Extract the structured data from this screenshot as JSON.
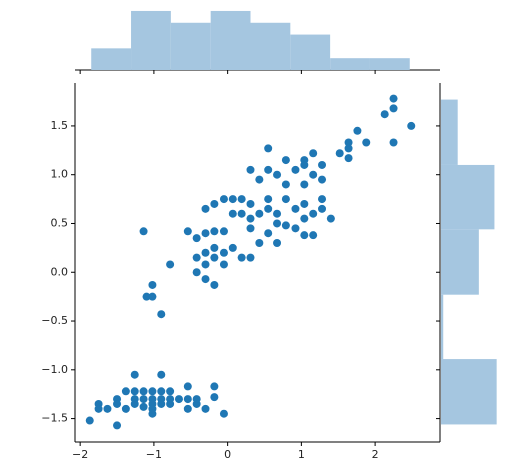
{
  "chart_data": {
    "type": "jointplot",
    "color": "#1f77b4",
    "hist_color": "#a5c6e0",
    "x": [
      -1.87,
      -1.75,
      -1.75,
      -1.63,
      -1.5,
      -1.5,
      -1.5,
      -1.38,
      -1.38,
      -1.26,
      -1.26,
      -1.26,
      -1.26,
      -1.14,
      -1.14,
      -1.14,
      -1.02,
      -1.02,
      -1.02,
      -1.02,
      -1.02,
      -0.9,
      -0.9,
      -0.9,
      -0.9,
      -0.78,
      -0.78,
      -0.78,
      -0.66,
      -0.54,
      -0.54,
      -0.54,
      -0.42,
      -0.42,
      -0.3,
      -0.18,
      -0.18,
      -0.05,
      -1.14,
      -1.02,
      -1.02,
      -1.1,
      -0.9,
      -0.78,
      -0.54,
      -0.42,
      -0.42,
      -0.42,
      -0.3,
      -0.3,
      -0.3,
      -0.3,
      -0.3,
      -0.18,
      -0.18,
      -0.18,
      -0.18,
      -0.18,
      -0.05,
      -0.05,
      -0.05,
      -0.05,
      0.07,
      0.07,
      0.07,
      0.19,
      0.19,
      0.19,
      0.31,
      0.31,
      0.31,
      0.31,
      0.31,
      0.43,
      0.43,
      0.43,
      0.55,
      0.55,
      0.55,
      0.55,
      0.55,
      0.67,
      0.67,
      0.67,
      0.67,
      0.79,
      0.79,
      0.79,
      0.79,
      0.92,
      0.92,
      0.92,
      1.04,
      1.04,
      1.04,
      1.04,
      1.04,
      1.04,
      1.16,
      1.16,
      1.16,
      1.16,
      1.28,
      1.28,
      1.28,
      1.28,
      1.4,
      1.52,
      1.64,
      1.64,
      1.64,
      1.76,
      1.88,
      2.13,
      2.25,
      2.25,
      2.25,
      2.49
    ],
    "y": [
      -1.52,
      -1.35,
      -1.4,
      -1.4,
      -1.57,
      -1.3,
      -1.35,
      -1.22,
      -1.4,
      -1.05,
      -1.22,
      -1.3,
      -1.35,
      -1.22,
      -1.3,
      -1.38,
      -1.22,
      -1.3,
      -1.35,
      -1.4,
      -1.45,
      -1.05,
      -1.22,
      -1.3,
      -1.35,
      -1.22,
      -1.3,
      -1.35,
      -1.3,
      -1.17,
      -1.3,
      -1.4,
      -1.35,
      -1.3,
      -1.4,
      -1.17,
      -1.28,
      -1.45,
      0.42,
      -0.13,
      -0.25,
      -0.25,
      -0.43,
      0.08,
      0.42,
      0.35,
      0.15,
      0.0,
      0.65,
      0.4,
      0.2,
      0.08,
      -0.07,
      0.7,
      0.42,
      0.25,
      0.15,
      -0.13,
      0.75,
      0.42,
      0.2,
      0.08,
      0.75,
      0.6,
      0.25,
      0.75,
      0.6,
      0.15,
      1.05,
      0.7,
      0.55,
      0.45,
      0.15,
      0.95,
      0.6,
      0.3,
      1.27,
      1.05,
      0.75,
      0.65,
      0.4,
      1.0,
      0.6,
      0.5,
      0.3,
      1.15,
      0.9,
      0.75,
      0.48,
      1.05,
      0.65,
      0.45,
      1.15,
      1.1,
      0.9,
      0.7,
      0.55,
      0.38,
      1.22,
      1.0,
      0.6,
      0.38,
      1.1,
      0.95,
      0.75,
      0.65,
      0.55,
      1.22,
      1.33,
      1.27,
      1.17,
      1.45,
      1.33,
      1.62,
      1.78,
      1.68,
      1.33,
      1.5
    ],
    "xlim": [
      -2.07,
      2.88
    ],
    "ylim": [
      -1.74,
      1.94
    ],
    "xticks": [
      {
        "value": -2,
        "label": "−2"
      },
      {
        "value": -1,
        "label": "−1"
      },
      0,
      1,
      2
    ],
    "yticks": [
      {
        "value": -1.5,
        "label": "−1.5"
      },
      {
        "value": -1.0,
        "label": "−1.0"
      },
      {
        "value": -0.5,
        "label": "−0.5"
      },
      {
        "value": 0.0,
        "label": "0.0"
      },
      0.5,
      {
        "value": 1.0,
        "label": "1.0"
      },
      1.5
    ],
    "x_hist": {
      "bins": [
        -1.85,
        -1.31,
        -0.77,
        -0.23,
        0.31,
        0.85,
        1.39,
        1.93,
        2.47
      ],
      "counts": [
        11,
        30,
        24,
        30,
        24,
        18,
        6,
        6
      ],
      "count_lim": [
        0,
        31.5
      ]
    },
    "y_hist": {
      "bins": [
        -1.56,
        -0.89,
        -0.23,
        0.44,
        1.1,
        1.77
      ],
      "counts": [
        50,
        2,
        34,
        48,
        15
      ],
      "count_lim": [
        0,
        53
      ]
    }
  }
}
